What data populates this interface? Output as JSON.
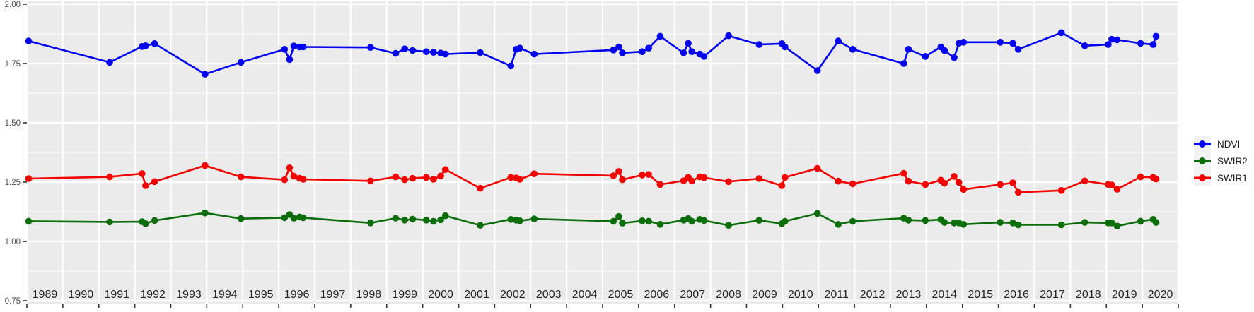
{
  "figure": {
    "background": "#FFFFFF",
    "panel_background": "#EBEBEB",
    "gridline_color": "#FFFFFF",
    "tick_color": "#333333",
    "y_axis_text_color": "#4D4D4D",
    "x_axis_text_color": "#262626"
  },
  "chart_data": {
    "type": "line",
    "title": "",
    "xlabel": "",
    "ylabel": "",
    "x_axis": {
      "range": [
        1989,
        2021
      ],
      "tick_labels": [
        "1989",
        "1990",
        "1991",
        "1992",
        "1993",
        "1994",
        "1995",
        "1996",
        "1997",
        "1998",
        "1999",
        "2000",
        "2001",
        "2002",
        "2003",
        "2004",
        "2005",
        "2006",
        "2007",
        "2008",
        "2009",
        "2010",
        "2011",
        "2012",
        "2013",
        "2014",
        "2015",
        "2016",
        "2017",
        "2018",
        "2019",
        "2020"
      ],
      "gridlines": "major at every year boundary"
    },
    "y_axis": {
      "range": [
        0.75,
        2.0
      ],
      "tick_values": [
        0.75,
        1.0,
        1.25,
        1.5,
        1.75,
        2.0
      ],
      "tick_labels": [
        "0.75",
        "1.00",
        "1.25",
        "1.50",
        "1.75",
        "2.00"
      ],
      "minor_gridlines": [
        0.875,
        1.125,
        1.375,
        1.625,
        1.875
      ]
    },
    "legend": {
      "position": "right",
      "entries": [
        {
          "label": "NDVI",
          "color": "#0202F2"
        },
        {
          "label": "SWIR2",
          "color": "#0B6E0B"
        },
        {
          "label": "SWIR1",
          "color": "#F50000"
        }
      ]
    },
    "x": [
      1989.05,
      1991.3,
      1992.2,
      1992.3,
      1992.55,
      1993.95,
      1994.95,
      1996.16,
      1996.3,
      1996.42,
      1996.58,
      1996.68,
      1998.55,
      1999.25,
      1999.5,
      1999.72,
      2000.1,
      2000.3,
      2000.5,
      2000.63,
      2001.6,
      2002.45,
      2002.6,
      2002.7,
      2003.1,
      2005.3,
      2005.45,
      2005.55,
      2006.1,
      2006.28,
      2006.6,
      2007.25,
      2007.38,
      2007.48,
      2007.7,
      2007.82,
      2008.5,
      2009.35,
      2009.98,
      2010.07,
      2010.97,
      2011.55,
      2011.95,
      2013.37,
      2013.5,
      2013.97,
      2014.4,
      2014.5,
      2014.77,
      2014.9,
      2015.03,
      2016.05,
      2016.4,
      2016.55,
      2017.75,
      2018.4,
      2019.05,
      2019.15,
      2019.3,
      2019.95,
      2020.3,
      2020.38
    ],
    "series": [
      {
        "name": "NDVI",
        "color": "#0202F2",
        "values": [
          1.845,
          1.755,
          1.822,
          1.825,
          1.834,
          1.705,
          1.755,
          1.81,
          1.767,
          1.824,
          1.82,
          1.82,
          1.818,
          1.793,
          1.812,
          1.805,
          1.8,
          1.797,
          1.794,
          1.79,
          1.796,
          1.74,
          1.81,
          1.815,
          1.79,
          1.807,
          1.82,
          1.795,
          1.8,
          1.815,
          1.865,
          1.795,
          1.835,
          1.8,
          1.79,
          1.78,
          1.867,
          1.83,
          1.834,
          1.82,
          1.72,
          1.845,
          1.81,
          1.75,
          1.81,
          1.78,
          1.82,
          1.805,
          1.775,
          1.835,
          1.84,
          1.84,
          1.835,
          1.81,
          1.88,
          1.825,
          1.83,
          1.852,
          1.85,
          1.835,
          1.83,
          1.865
        ]
      },
      {
        "name": "SWIR2",
        "color": "#0B6E0B",
        "values": [
          1.085,
          1.082,
          1.083,
          1.075,
          1.088,
          1.12,
          1.096,
          1.1,
          1.113,
          1.098,
          1.103,
          1.1,
          1.078,
          1.098,
          1.09,
          1.094,
          1.09,
          1.085,
          1.091,
          1.108,
          1.068,
          1.093,
          1.09,
          1.087,
          1.095,
          1.085,
          1.105,
          1.077,
          1.087,
          1.085,
          1.072,
          1.09,
          1.096,
          1.085,
          1.093,
          1.088,
          1.068,
          1.089,
          1.075,
          1.085,
          1.118,
          1.072,
          1.085,
          1.098,
          1.09,
          1.088,
          1.092,
          1.08,
          1.078,
          1.078,
          1.072,
          1.08,
          1.078,
          1.07,
          1.07,
          1.08,
          1.078,
          1.078,
          1.065,
          1.085,
          1.093,
          1.08
        ]
      },
      {
        "name": "SWIR1",
        "color": "#F50000",
        "values": [
          1.265,
          1.272,
          1.286,
          1.235,
          1.252,
          1.32,
          1.272,
          1.26,
          1.31,
          1.275,
          1.266,
          1.262,
          1.255,
          1.272,
          1.26,
          1.266,
          1.27,
          1.262,
          1.276,
          1.303,
          1.224,
          1.27,
          1.268,
          1.262,
          1.285,
          1.277,
          1.295,
          1.26,
          1.28,
          1.282,
          1.24,
          1.256,
          1.27,
          1.255,
          1.272,
          1.269,
          1.252,
          1.265,
          1.235,
          1.27,
          1.308,
          1.254,
          1.243,
          1.287,
          1.254,
          1.24,
          1.258,
          1.245,
          1.274,
          1.249,
          1.219,
          1.24,
          1.247,
          1.207,
          1.215,
          1.255,
          1.24,
          1.238,
          1.22,
          1.272,
          1.27,
          1.263
        ]
      }
    ]
  }
}
